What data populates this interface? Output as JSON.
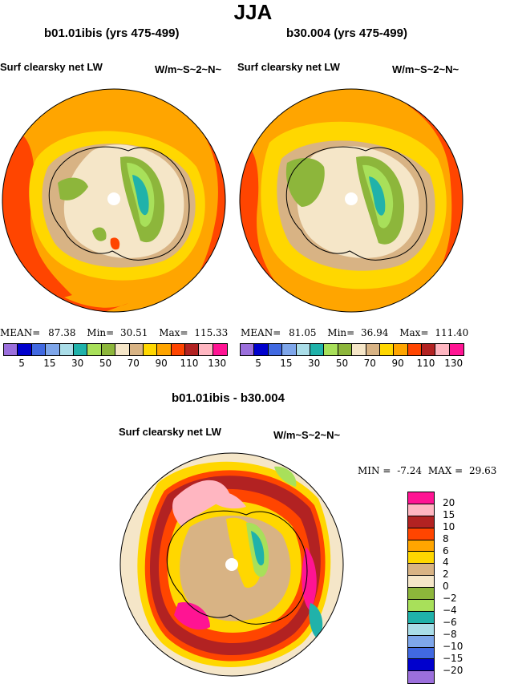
{
  "title": "JJA",
  "panels": [
    {
      "case_title": "b01.01ibis (yrs 475-499)",
      "variable": "Surf clearsky net LW",
      "units": "W/m~S~2~N~",
      "stats": {
        "mean_label": "MEAN=",
        "mean": "87.38",
        "min_label": "Min=",
        "min": "30.51",
        "max_label": "Max=",
        "max": "115.33"
      }
    },
    {
      "case_title": "b30.004 (yrs 475-499)",
      "variable": "Surf clearsky net LW",
      "units": "W/m~S~2~N~",
      "stats": {
        "mean_label": "MEAN=",
        "mean": "81.05",
        "min_label": "Min=",
        "min": "36.94",
        "max_label": "Max=",
        "max": "111.40"
      }
    }
  ],
  "diff": {
    "title": "b01.01ibis - b30.004",
    "variable": "Surf clearsky net LW",
    "units": "W/m~S~2~N~",
    "min_label": "MIN =",
    "min": "-7.24",
    "max_label": "MAX =",
    "max": "29.63"
  },
  "abs_colorbar": {
    "colors": [
      "#9b6fdc",
      "#0000cd",
      "#4169e1",
      "#7ea6ea",
      "#aadde8",
      "#20b2aa",
      "#a8e05a",
      "#8db63b",
      "#f5e6c8",
      "#d8b384",
      "#ffd700",
      "#ffa500",
      "#ff4500",
      "#b22222",
      "#ffb6c1",
      "#ff1493"
    ],
    "labels": [
      "5",
      "15",
      "30",
      "50",
      "70",
      "90",
      "110",
      "130"
    ]
  },
  "diff_colorbar": {
    "colors": [
      "#ff1493",
      "#ffb6c1",
      "#b22222",
      "#ff4500",
      "#ffa500",
      "#ffd700",
      "#d8b384",
      "#f5e6c8",
      "#8db63b",
      "#a8e05a",
      "#20b2aa",
      "#aadde8",
      "#7ea6ea",
      "#4169e1",
      "#0000cd",
      "#9b6fdc"
    ],
    "labels": [
      "20",
      "15",
      "10",
      "8",
      "6",
      "4",
      "2",
      "0",
      "−2",
      "−4",
      "−6",
      "−8",
      "−10",
      "−15",
      "−20"
    ]
  }
}
